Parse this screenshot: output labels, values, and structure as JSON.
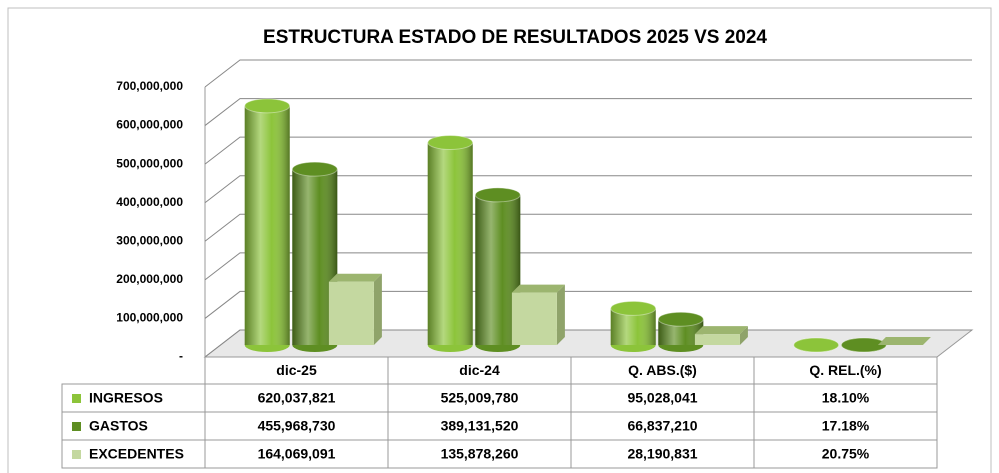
{
  "chart_data": {
    "type": "bar3d",
    "title": "ESTRUCTURA ESTADO DE RESULTADOS 2025 VS 2024",
    "categories": [
      "dic-25",
      "dic-24",
      "Q. ABS.($)",
      "Q. REL.(%)"
    ],
    "series": [
      {
        "name": "INGRESOS",
        "color": "#8cc43a",
        "values": [
          620037821,
          525009780,
          95028041,
          18.1
        ],
        "value_labels": [
          "620,037,821",
          "525,009,780",
          "95,028,041",
          "18.10%"
        ]
      },
      {
        "name": "GASTOS",
        "color": "#5e8e22",
        "values": [
          455968730,
          389131520,
          66837210,
          17.18
        ],
        "value_labels": [
          "455,968,730",
          "389,131,520",
          "66,837,210",
          "17.18%"
        ]
      },
      {
        "name": "EXCEDENTES",
        "color": "#c4d8a0",
        "values": [
          164069091,
          135878260,
          28190831,
          20.75
        ],
        "value_labels": [
          "164,069,091",
          "135,878,260",
          "28,190,831",
          "20.75%"
        ]
      }
    ],
    "ylim": [
      0,
      700000000
    ],
    "yticks": [
      {
        "value": 0,
        "label": "-"
      },
      {
        "value": 100000000,
        "label": "100,000,000"
      },
      {
        "value": 200000000,
        "label": "200,000,000"
      },
      {
        "value": 300000000,
        "label": "300,000,000"
      },
      {
        "value": 400000000,
        "label": "400,000,000"
      },
      {
        "value": 500000000,
        "label": "500,000,000"
      },
      {
        "value": 600000000,
        "label": "600,000,000"
      },
      {
        "value": 700000000,
        "label": "700,000,000"
      }
    ],
    "grid": true
  }
}
